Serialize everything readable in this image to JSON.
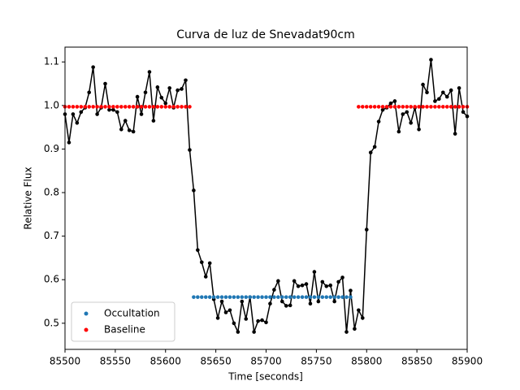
{
  "chart_data": {
    "type": "scatter",
    "title": "Curva de luz de Snevadat90cm",
    "x_label": "Time [seconds]",
    "y_label": "Relative Flux",
    "xlim": [
      85500,
      85900
    ],
    "ylim": [
      0.44,
      1.134
    ],
    "xticks": [
      85500,
      85550,
      85600,
      85650,
      85700,
      85750,
      85800,
      85850,
      85900
    ],
    "yticks": [
      0.5,
      0.6,
      0.7,
      0.8,
      0.9,
      {
        "value": 1,
        "label": "1.0"
      },
      1.1
    ],
    "legend": "lower left",
    "series": [
      {
        "color": "#000000",
        "line": true,
        "x": [
          85500,
          85504,
          85508,
          85512,
          85516,
          85520,
          85524,
          85528,
          85532,
          85536,
          85540,
          85544,
          85548,
          85552,
          85556,
          85560,
          85564,
          85568,
          85572,
          85576,
          85580,
          85584,
          85588,
          85592,
          85596,
          85600,
          85604,
          85608,
          85612,
          85616,
          85620,
          85624,
          85628,
          85632,
          85636,
          85640,
          85644,
          85648,
          85652,
          85656,
          85660,
          85664,
          85668,
          85672,
          85676,
          85680,
          85684,
          85688,
          85692,
          85696,
          85700,
          85704,
          85708,
          85712,
          85716,
          85720,
          85724,
          85728,
          85732,
          85736,
          85740,
          85744,
          85748,
          85752,
          85756,
          85760,
          85764,
          85768,
          85772,
          85776,
          85780,
          85784,
          85788,
          85792,
          85796,
          85800,
          85804,
          85808,
          85812,
          85816,
          85820,
          85824,
          85828,
          85832,
          85836,
          85840,
          85844,
          85848,
          85852,
          85856,
          85860,
          85864,
          85868,
          85872,
          85876,
          85880,
          85884,
          85888,
          85892,
          85896,
          85900
        ],
        "values": [
          0.98,
          0.915,
          0.98,
          0.96,
          0.985,
          0.995,
          1.03,
          1.088,
          0.98,
          0.995,
          1.05,
          0.99,
          0.99,
          0.985,
          0.945,
          0.965,
          0.943,
          0.94,
          1.02,
          0.98,
          1.03,
          1.077,
          0.965,
          1.042,
          1.018,
          1.005,
          1.04,
          0.995,
          1.035,
          1.038,
          1.058,
          0.898,
          0.805,
          0.668,
          0.64,
          0.607,
          0.638,
          0.555,
          0.512,
          0.55,
          0.525,
          0.53,
          0.5,
          0.48,
          0.55,
          0.51,
          0.56,
          0.48,
          0.505,
          0.507,
          0.502,
          0.545,
          0.577,
          0.597,
          0.55,
          0.54,
          0.541,
          0.597,
          0.585,
          0.587,
          0.59,
          0.545,
          0.618,
          0.55,
          0.595,
          0.585,
          0.587,
          0.55,
          0.595,
          0.605,
          0.48,
          0.575,
          0.487,
          0.53,
          0.512,
          0.715,
          0.892,
          0.905,
          0.963,
          0.99,
          0.995,
          1.005,
          1.01,
          0.94,
          0.98,
          0.985,
          0.96,
          0.995,
          0.945,
          1.048,
          1.03,
          1.105,
          1.01,
          1.015,
          1.03,
          1.02,
          1.035,
          0.935,
          1.04,
          0.985,
          0.975
        ]
      },
      {
        "name": "Occultation",
        "color": "#1f77b4",
        "x": [
          85628,
          85632,
          85636,
          85640,
          85644,
          85648,
          85652,
          85656,
          85660,
          85664,
          85668,
          85672,
          85676,
          85680,
          85684,
          85688,
          85692,
          85696,
          85700,
          85704,
          85708,
          85712,
          85716,
          85720,
          85724,
          85728,
          85732,
          85736,
          85740,
          85744,
          85748,
          85752,
          85756,
          85760,
          85764,
          85768,
          85772,
          85776,
          85780,
          85784
        ],
        "values": [
          0.56,
          0.56,
          0.56,
          0.56,
          0.56,
          0.56,
          0.56,
          0.56,
          0.56,
          0.56,
          0.56,
          0.56,
          0.56,
          0.56,
          0.56,
          0.56,
          0.56,
          0.56,
          0.56,
          0.56,
          0.56,
          0.56,
          0.56,
          0.56,
          0.56,
          0.56,
          0.56,
          0.56,
          0.56,
          0.56,
          0.56,
          0.56,
          0.56,
          0.56,
          0.56,
          0.56,
          0.56,
          0.56,
          0.56,
          0.56
        ]
      },
      {
        "name": "Baseline",
        "color": "#ff0000",
        "x": [
          85500,
          85504,
          85508,
          85512,
          85516,
          85520,
          85524,
          85528,
          85532,
          85536,
          85540,
          85544,
          85548,
          85552,
          85556,
          85560,
          85564,
          85568,
          85572,
          85576,
          85580,
          85584,
          85588,
          85592,
          85596,
          85600,
          85604,
          85608,
          85612,
          85616,
          85620,
          85624,
          85792,
          85796,
          85800,
          85804,
          85808,
          85812,
          85816,
          85820,
          85824,
          85828,
          85832,
          85836,
          85840,
          85844,
          85848,
          85852,
          85856,
          85860,
          85864,
          85868,
          85872,
          85876,
          85880,
          85884,
          85888,
          85892,
          85896,
          85900
        ],
        "values": [
          0.997,
          0.997,
          0.997,
          0.997,
          0.997,
          0.997,
          0.997,
          0.997,
          0.997,
          0.997,
          0.997,
          0.997,
          0.997,
          0.997,
          0.997,
          0.997,
          0.997,
          0.997,
          0.997,
          0.997,
          0.997,
          0.997,
          0.997,
          0.997,
          0.997,
          0.997,
          0.997,
          0.997,
          0.997,
          0.997,
          0.997,
          0.997,
          0.997,
          0.997,
          0.997,
          0.997,
          0.997,
          0.997,
          0.997,
          0.997,
          0.997,
          0.997,
          0.997,
          0.997,
          0.997,
          0.997,
          0.997,
          0.997,
          0.997,
          0.997,
          0.997,
          0.997,
          0.997,
          0.997,
          0.997,
          0.997,
          0.997,
          0.997,
          0.997,
          0.997
        ]
      }
    ]
  }
}
